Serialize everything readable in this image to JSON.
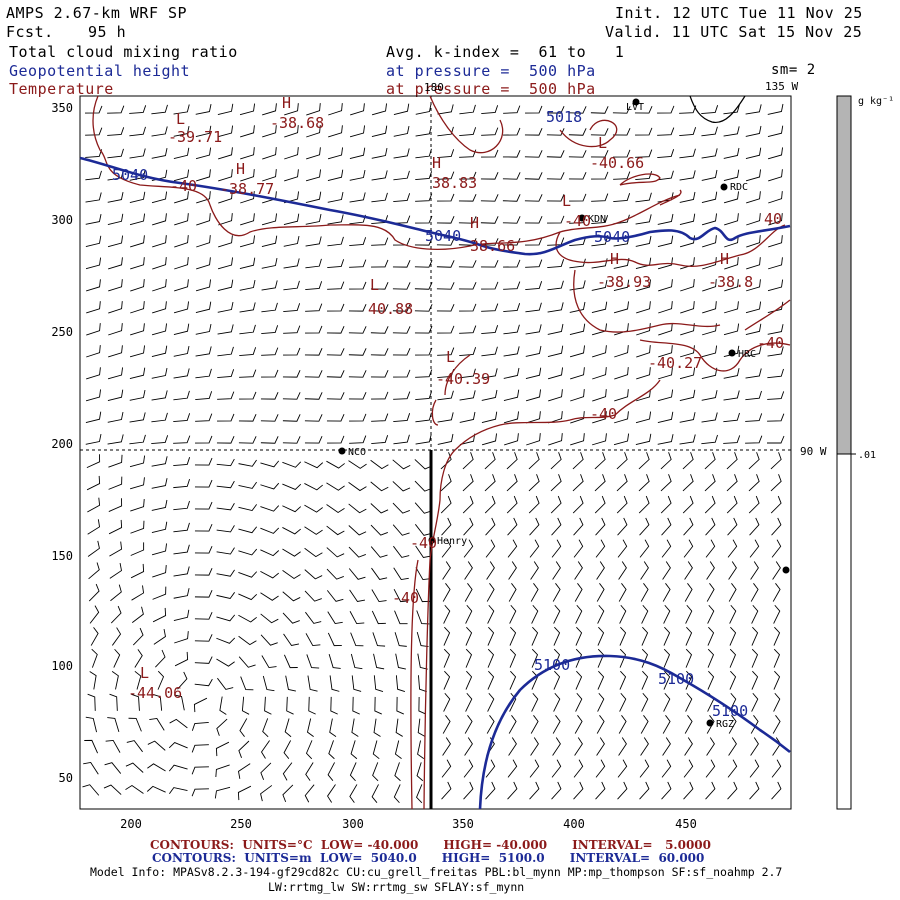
{
  "header": {
    "model": "AMPS 2.67-km WRF SP",
    "fcst_label": "Fcst.",
    "fcst_value": "95 h",
    "init": "Init. 12 UTC Tue 11 Nov 25",
    "valid": "Valid. 11 UTC Sat 15 Nov 25",
    "field1": "Total cloud mixing ratio",
    "field2": "Geopotential height",
    "field3": "Temperature",
    "avg": "Avg. k-index =  61 to   1",
    "pressure1": "at pressure =  500 hPa",
    "pressure2": "at pressure =  500 hPa",
    "sm": "sm= 2"
  },
  "map": {
    "meridian_top": "180",
    "meridian_right_top": "135 W",
    "meridian_right_mid": "90 W",
    "y_ticks": [
      "350",
      "300",
      "250",
      "200",
      "150",
      "100",
      "50"
    ],
    "x_ticks": [
      "200",
      "250",
      "300",
      "350",
      "400",
      "450"
    ],
    "stations": [
      {
        "name": "LVT"
      },
      {
        "name": "RDC"
      },
      {
        "name": "KDN"
      },
      {
        "name": "HRC"
      },
      {
        "name": "NCO"
      },
      {
        "name": "Henry"
      },
      {
        "name": "RGZ"
      },
      {
        "name": ""
      }
    ],
    "height_labels": [
      "5040",
      "5040",
      "5040",
      "5100",
      "5100",
      "5100",
      "5018"
    ],
    "temp_labels": [
      {
        "text": "-39.71"
      },
      {
        "text": "-38.68"
      },
      {
        "text": "-40"
      },
      {
        "text": "-38.77"
      },
      {
        "text": "38.83"
      },
      {
        "text": "-40.66"
      },
      {
        "text": "38.66"
      },
      {
        "text": "-40"
      },
      {
        "text": "-38.93"
      },
      {
        "text": "-38.8"
      },
      {
        "text": "40"
      },
      {
        "text": "40.88"
      },
      {
        "text": "-40.39"
      },
      {
        "text": "-40.27"
      },
      {
        "text": "-40"
      },
      {
        "text": "-40"
      },
      {
        "text": "-40"
      },
      {
        "text": "-40"
      },
      {
        "text": "-44.06"
      }
    ],
    "hl_markers": [
      "L",
      "H",
      "H",
      "L",
      "H",
      "H",
      "L",
      "L",
      "L",
      "L",
      "H",
      "H"
    ]
  },
  "colorbar": {
    "units": "g kg⁻¹",
    "value": ".01"
  },
  "footer": {
    "contour1": "CONTOURS:  UNITS=°C  LOW= -40.000      HIGH= -40.000      INTERVAL=   5.0000",
    "contour2": "CONTOURS:  UNITS=m  LOW=  5040.0      HIGH=  5100.0      INTERVAL=  60.000",
    "model_info": "Model Info: MPASv8.2.3-194-gf29cd82c CU:cu_grell_freitas PBL:bl_mynn MP:mp_thompson SF:sf_noahmp 2.7",
    "model_info2": "LW:rrtmg_lw SW:rrtmg_sw SFLAY:sf_mynn"
  },
  "colors": {
    "height": "#1c2a96",
    "temperature": "#8b1a1a",
    "colorbar_fill": "#b4b4b4"
  }
}
